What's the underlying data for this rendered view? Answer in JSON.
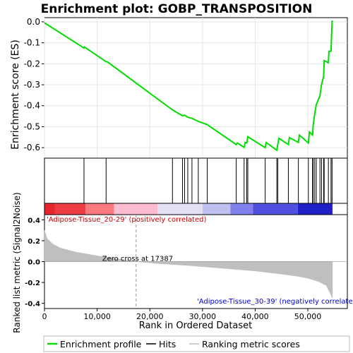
{
  "chart_data": {
    "type": "line",
    "title": "Enrichment plot: GOBP_TRANSPOSITION",
    "es_panel": {
      "ylabel": "Enrichment score (ES)",
      "yticks": [
        0.0,
        -0.1,
        -0.2,
        -0.3,
        -0.4,
        -0.5,
        -0.6
      ],
      "ylim": [
        -0.65,
        0.02
      ],
      "grid": true,
      "series_name": "Enrichment profile",
      "color": "#00dd00",
      "points": [
        [
          0,
          -0.005
        ],
        [
          7500,
          -0.125
        ],
        [
          7600,
          -0.12
        ],
        [
          11700,
          -0.19
        ],
        [
          11900,
          -0.19
        ],
        [
          24300,
          -0.42
        ],
        [
          26200,
          -0.448
        ],
        [
          26600,
          -0.445
        ],
        [
          27200,
          -0.455
        ],
        [
          28000,
          -0.46
        ],
        [
          29200,
          -0.475
        ],
        [
          30900,
          -0.49
        ],
        [
          36400,
          -0.585
        ],
        [
          36600,
          -0.578
        ],
        [
          37900,
          -0.598
        ],
        [
          38100,
          -0.575
        ],
        [
          38400,
          -0.578
        ],
        [
          38600,
          -0.548
        ],
        [
          41900,
          -0.6
        ],
        [
          42100,
          -0.575
        ],
        [
          44100,
          -0.612
        ],
        [
          44300,
          -0.585
        ],
        [
          44500,
          -0.555
        ],
        [
          46300,
          -0.585
        ],
        [
          46500,
          -0.552
        ],
        [
          48200,
          -0.575
        ],
        [
          48400,
          -0.54
        ],
        [
          50100,
          -0.578
        ],
        [
          50300,
          -0.525
        ],
        [
          50900,
          -0.54
        ],
        [
          51000,
          -0.495
        ],
        [
          51300,
          -0.44
        ],
        [
          51600,
          -0.395
        ],
        [
          52300,
          -0.352
        ],
        [
          52600,
          -0.3
        ],
        [
          53000,
          -0.26
        ],
        [
          53100,
          -0.185
        ],
        [
          53900,
          -0.195
        ],
        [
          54000,
          -0.14
        ],
        [
          54400,
          -0.14
        ],
        [
          54500,
          -0.07
        ],
        [
          54600,
          0.005
        ],
        [
          54700,
          0.0
        ]
      ]
    },
    "hits": {
      "series_name": "Hits",
      "positions": [
        7500,
        11700,
        24300,
        26200,
        26600,
        27200,
        28000,
        29200,
        30900,
        36400,
        37900,
        38400,
        38600,
        41900,
        44100,
        44300,
        46300,
        48200,
        50100,
        50900,
        51000,
        51300,
        51600,
        52300,
        52600,
        53000,
        53100,
        53900,
        54400,
        54600
      ]
    },
    "rank_metric": {
      "ylabel": "Ranked list metric (Signal2Noise)",
      "xlabel": "Rank in Ordered Dataset",
      "yticks": [
        0.4,
        0.2,
        0.0,
        -0.2,
        -0.4
      ],
      "ylim": [
        -0.45,
        0.45
      ],
      "xticks": [
        0,
        10000,
        20000,
        30000,
        40000,
        50000
      ],
      "xtick_labels": [
        "0",
        "10,000",
        "20,000",
        "30,000",
        "40,000",
        "50,000"
      ],
      "xlim": [
        0,
        57500
      ],
      "n_genes": 54675,
      "zero_cross": 17387,
      "zero_cross_label": "Zero cross at 17387",
      "positive_label": "'Adipose-Tissue_20-29' (positively correlated)",
      "negative_label": "'Adipose-Tissue_30-39' (negatively correlated)",
      "series_name": "Ranking metric scores",
      "profile": [
        [
          0,
          0.3
        ],
        [
          500,
          0.22
        ],
        [
          1500,
          0.17
        ],
        [
          3000,
          0.13
        ],
        [
          6000,
          0.09
        ],
        [
          10000,
          0.055
        ],
        [
          14000,
          0.025
        ],
        [
          17387,
          0.0
        ],
        [
          22000,
          -0.02
        ],
        [
          28000,
          -0.04
        ],
        [
          34000,
          -0.065
        ],
        [
          40000,
          -0.09
        ],
        [
          45000,
          -0.12
        ],
        [
          48000,
          -0.14
        ],
        [
          50000,
          -0.16
        ],
        [
          52000,
          -0.19
        ],
        [
          53500,
          -0.23
        ],
        [
          54200,
          -0.3
        ],
        [
          54675,
          -0.35
        ]
      ]
    },
    "legend": {
      "placement": "bottom",
      "items": [
        "Enrichment profile",
        "Hits",
        "Ranking metric scores"
      ]
    }
  }
}
